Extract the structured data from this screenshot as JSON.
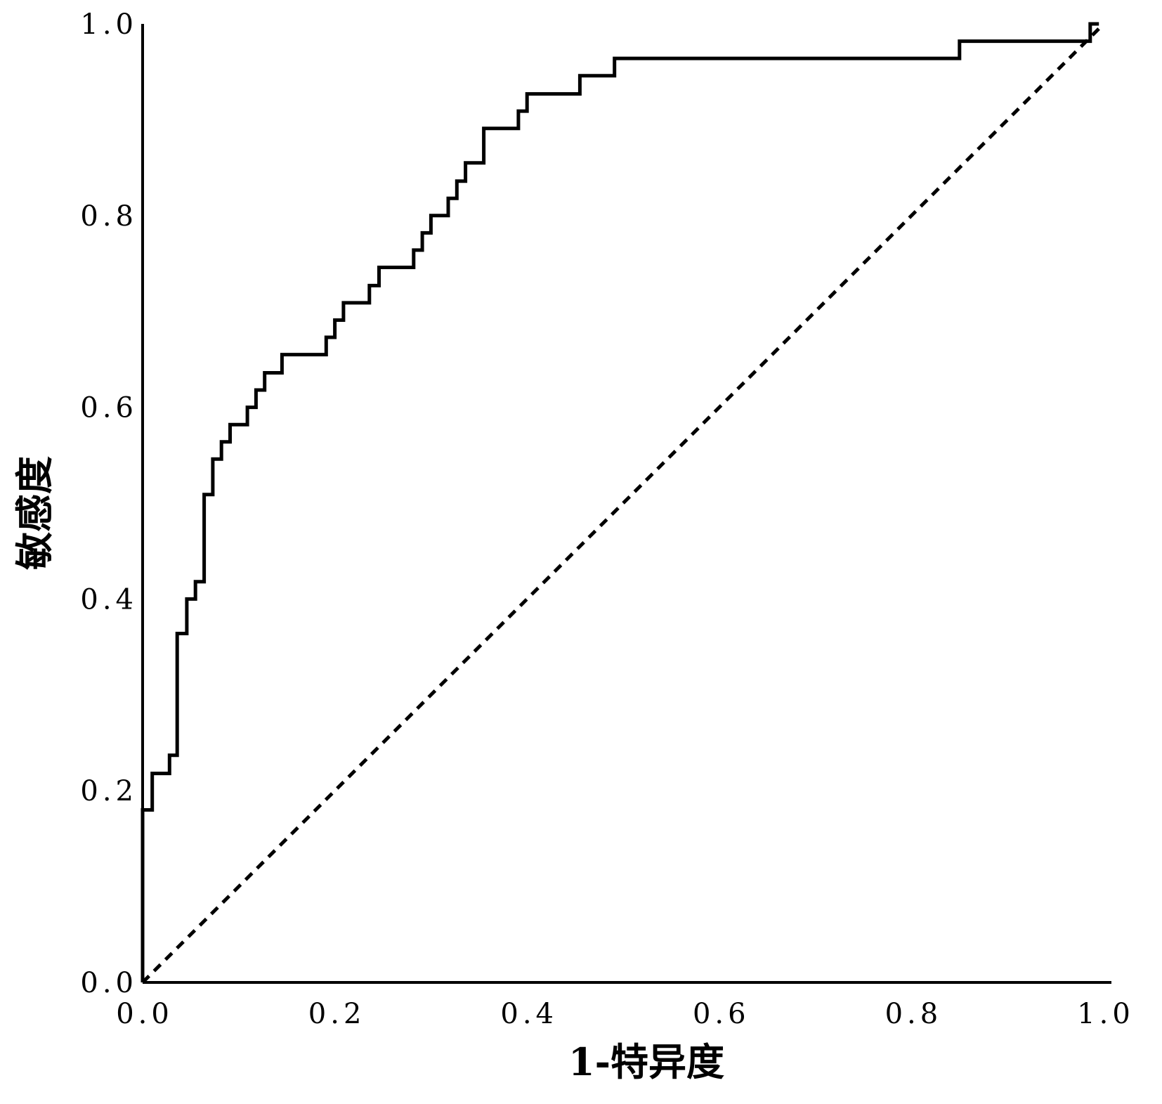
{
  "chart_data": {
    "type": "line",
    "title": "",
    "xlabel": "1-特异度",
    "ylabel": "敏感度",
    "xlim": [
      0.0,
      1.0
    ],
    "ylim": [
      0.0,
      1.0
    ],
    "x_ticks": [
      "0.0",
      "0.2",
      "0.4",
      "0.6",
      "0.8",
      "1.0"
    ],
    "y_ticks": [
      "0.0",
      "0.2",
      "0.4",
      "0.6",
      "0.8",
      "1.0"
    ],
    "grid": false,
    "legend": "none",
    "series": [
      {
        "style": "solid-step",
        "points": [
          [
            0.0,
            0.0
          ],
          [
            0.0,
            0.18
          ],
          [
            0.01,
            0.18
          ],
          [
            0.01,
            0.218
          ],
          [
            0.028,
            0.218
          ],
          [
            0.028,
            0.237
          ],
          [
            0.036,
            0.237
          ],
          [
            0.036,
            0.364
          ],
          [
            0.046,
            0.364
          ],
          [
            0.046,
            0.4
          ],
          [
            0.055,
            0.4
          ],
          [
            0.055,
            0.418
          ],
          [
            0.064,
            0.418
          ],
          [
            0.064,
            0.509
          ],
          [
            0.073,
            0.509
          ],
          [
            0.073,
            0.546
          ],
          [
            0.082,
            0.546
          ],
          [
            0.082,
            0.564
          ],
          [
            0.091,
            0.564
          ],
          [
            0.091,
            0.582
          ],
          [
            0.109,
            0.582
          ],
          [
            0.109,
            0.6
          ],
          [
            0.118,
            0.6
          ],
          [
            0.118,
            0.618
          ],
          [
            0.127,
            0.618
          ],
          [
            0.127,
            0.636
          ],
          [
            0.145,
            0.636
          ],
          [
            0.145,
            0.655
          ],
          [
            0.191,
            0.655
          ],
          [
            0.191,
            0.673
          ],
          [
            0.2,
            0.673
          ],
          [
            0.2,
            0.691
          ],
          [
            0.209,
            0.691
          ],
          [
            0.209,
            0.709
          ],
          [
            0.236,
            0.709
          ],
          [
            0.236,
            0.727
          ],
          [
            0.246,
            0.727
          ],
          [
            0.246,
            0.746
          ],
          [
            0.282,
            0.746
          ],
          [
            0.282,
            0.764
          ],
          [
            0.291,
            0.764
          ],
          [
            0.291,
            0.782
          ],
          [
            0.3,
            0.782
          ],
          [
            0.3,
            0.8
          ],
          [
            0.318,
            0.8
          ],
          [
            0.318,
            0.818
          ],
          [
            0.327,
            0.818
          ],
          [
            0.327,
            0.836
          ],
          [
            0.336,
            0.836
          ],
          [
            0.336,
            0.855
          ],
          [
            0.355,
            0.855
          ],
          [
            0.355,
            0.891
          ],
          [
            0.391,
            0.891
          ],
          [
            0.391,
            0.909
          ],
          [
            0.4,
            0.909
          ],
          [
            0.4,
            0.927
          ],
          [
            0.455,
            0.927
          ],
          [
            0.455,
            0.946
          ],
          [
            0.491,
            0.946
          ],
          [
            0.491,
            0.964
          ],
          [
            0.85,
            0.964
          ],
          [
            0.85,
            0.982
          ],
          [
            0.986,
            0.982
          ],
          [
            0.986,
            1.0
          ],
          [
            0.995,
            1.0
          ]
        ]
      },
      {
        "style": "dashed",
        "points": [
          [
            0.0,
            0.0
          ],
          [
            1.0,
            1.0
          ]
        ]
      }
    ]
  }
}
